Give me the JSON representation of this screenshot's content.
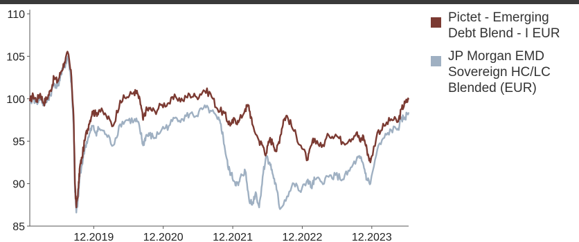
{
  "chart_data": {
    "type": "line",
    "title": "",
    "xlabel": "",
    "ylabel": "",
    "ylim": [
      85,
      110
    ],
    "yticks": [
      85,
      90,
      95,
      100,
      105,
      110
    ],
    "xticks": [
      "12.2019",
      "12.2020",
      "12.2021",
      "12.2022",
      "12.2023"
    ],
    "grid": false,
    "legend": "right",
    "x_note": "fractional years; 12.2019 = 2019.92",
    "series": [
      {
        "name": "Pictet - Emerging\nDebt Blend - I EUR",
        "color": "#7b3a32",
        "x": [
          2019.0,
          2019.05,
          2019.1,
          2019.15,
          2019.2,
          2019.25,
          2019.3,
          2019.35,
          2019.4,
          2019.45,
          2019.5,
          2019.55,
          2019.6,
          2019.63,
          2019.65,
          2019.67,
          2019.7,
          2019.72,
          2019.75,
          2019.8,
          2019.85,
          2019.9,
          2019.95,
          2020.0,
          2020.1,
          2020.2,
          2020.3,
          2020.4,
          2020.5,
          2020.55,
          2020.6,
          2020.63,
          2020.67,
          2020.72,
          2020.8,
          2020.9,
          2021.0,
          2021.1,
          2021.2,
          2021.3,
          2021.4,
          2021.5,
          2021.6,
          2021.7,
          2021.8,
          2021.85,
          2021.9,
          2021.95,
          2022.0,
          2022.1,
          2022.15,
          2022.2,
          2022.3,
          2022.35,
          2022.4,
          2022.45,
          2022.5,
          2022.55,
          2022.6,
          2022.65,
          2022.7,
          2022.8,
          2022.9,
          2023.0,
          2023.05,
          2023.1,
          2023.2,
          2023.3,
          2023.4,
          2023.5,
          2023.6,
          2023.7,
          2023.75,
          2023.8,
          2023.85,
          2023.9,
          2024.0,
          2024.1,
          2024.2,
          2024.3,
          2024.35,
          2024.4,
          2024.45
        ],
        "y": [
          99.7,
          100.4,
          99.8,
          100.6,
          99.5,
          100.1,
          101.0,
          102.5,
          102.0,
          103.2,
          104.3,
          105.4,
          102.5,
          98.0,
          90.0,
          87.2,
          89.5,
          92.0,
          93.0,
          95.5,
          97.0,
          98.5,
          98.2,
          98.7,
          98.0,
          96.8,
          99.8,
          100.2,
          100.8,
          100.6,
          99.2,
          97.5,
          98.6,
          98.8,
          98.5,
          99.3,
          99.5,
          100.2,
          99.8,
          100.5,
          100.2,
          101.0,
          100.6,
          98.8,
          98.3,
          97.3,
          97.0,
          97.6,
          97.2,
          98.8,
          99.2,
          97.0,
          95.0,
          94.5,
          93.5,
          95.2,
          94.8,
          93.8,
          95.5,
          97.5,
          98.0,
          96.2,
          94.5,
          92.8,
          94.5,
          95.3,
          94.3,
          95.7,
          95.8,
          94.9,
          95.2,
          96.0,
          95.0,
          95.6,
          94.0,
          92.5,
          96.0,
          96.8,
          97.6,
          97.3,
          98.8,
          99.5,
          99.9
        ]
      },
      {
        "name": "JP Morgan EMD\nSovereign HC/LC\nBlended (EUR)",
        "color": "#9fb0c2",
        "x": [
          2019.0,
          2019.05,
          2019.1,
          2019.15,
          2019.2,
          2019.25,
          2019.3,
          2019.35,
          2019.4,
          2019.45,
          2019.5,
          2019.55,
          2019.6,
          2019.63,
          2019.65,
          2019.67,
          2019.7,
          2019.72,
          2019.75,
          2019.8,
          2019.85,
          2019.9,
          2019.95,
          2020.0,
          2020.1,
          2020.2,
          2020.3,
          2020.4,
          2020.5,
          2020.55,
          2020.6,
          2020.63,
          2020.67,
          2020.72,
          2020.8,
          2020.9,
          2021.0,
          2021.1,
          2021.2,
          2021.3,
          2021.4,
          2021.5,
          2021.6,
          2021.7,
          2021.75,
          2021.8,
          2021.85,
          2021.9,
          2021.95,
          2022.0,
          2022.05,
          2022.1,
          2022.15,
          2022.2,
          2022.25,
          2022.3,
          2022.35,
          2022.4,
          2022.45,
          2022.5,
          2022.55,
          2022.6,
          2022.7,
          2022.8,
          2022.9,
          2023.0,
          2023.05,
          2023.1,
          2023.2,
          2023.3,
          2023.4,
          2023.5,
          2023.6,
          2023.7,
          2023.75,
          2023.8,
          2023.85,
          2023.9,
          2024.0,
          2024.1,
          2024.2,
          2024.3,
          2024.35,
          2024.4,
          2024.45
        ],
        "y": [
          99.5,
          100.0,
          99.6,
          100.1,
          99.3,
          99.8,
          100.5,
          101.8,
          101.5,
          102.8,
          103.8,
          105.0,
          101.8,
          97.0,
          89.0,
          86.6,
          88.5,
          91.2,
          92.2,
          94.5,
          95.5,
          96.8,
          96.0,
          96.5,
          95.8,
          94.5,
          97.0,
          97.5,
          97.4,
          97.3,
          95.8,
          94.5,
          95.6,
          95.7,
          95.4,
          96.4,
          96.8,
          97.8,
          97.6,
          98.2,
          98.0,
          98.9,
          98.6,
          97.6,
          97.0,
          94.5,
          92.0,
          91.0,
          90.2,
          89.8,
          91.0,
          91.5,
          88.4,
          87.5,
          89.0,
          87.2,
          90.8,
          93.3,
          92.5,
          91.0,
          89.3,
          87.0,
          88.5,
          90.0,
          89.0,
          90.5,
          89.5,
          90.5,
          90.2,
          90.8,
          91.0,
          90.5,
          91.5,
          92.8,
          93.0,
          92.2,
          90.5,
          90.0,
          94.0,
          95.4,
          96.3,
          96.5,
          97.6,
          97.8,
          98.4
        ]
      }
    ]
  }
}
